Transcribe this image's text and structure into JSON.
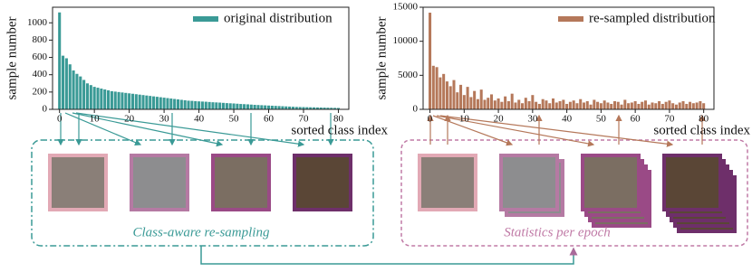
{
  "chart_data": [
    {
      "type": "bar",
      "series": [
        {
          "name": "original distribution",
          "color": "#3a9a96",
          "values": [
            1120,
            620,
            590,
            520,
            450,
            410,
            380,
            340,
            300,
            280,
            260,
            250,
            240,
            230,
            220,
            210,
            205,
            200,
            195,
            190,
            185,
            180,
            175,
            170,
            165,
            160,
            155,
            150,
            145,
            140,
            135,
            130,
            125,
            120,
            115,
            110,
            105,
            100,
            98,
            95,
            92,
            90,
            88,
            85,
            82,
            80,
            78,
            75,
            72,
            70,
            68,
            65,
            62,
            60,
            58,
            55,
            52,
            50,
            48,
            46,
            44,
            42,
            40,
            38,
            36,
            34,
            32,
            30,
            28,
            27,
            26,
            25,
            24,
            23,
            22,
            21,
            20,
            19,
            18,
            17,
            16
          ]
        }
      ],
      "x": [
        0,
        1,
        2,
        3,
        4,
        5,
        6,
        7,
        8,
        9,
        10,
        11,
        12,
        13,
        14,
        15,
        16,
        17,
        18,
        19,
        20,
        21,
        22,
        23,
        24,
        25,
        26,
        27,
        28,
        29,
        30,
        31,
        32,
        33,
        34,
        35,
        36,
        37,
        38,
        39,
        40,
        41,
        42,
        43,
        44,
        45,
        46,
        47,
        48,
        49,
        50,
        51,
        52,
        53,
        54,
        55,
        56,
        57,
        58,
        59,
        60,
        61,
        62,
        63,
        64,
        65,
        66,
        67,
        68,
        69,
        70,
        71,
        72,
        73,
        74,
        75,
        76,
        77,
        78,
        79,
        80
      ],
      "xlim": [
        -2,
        83
      ],
      "xticks": [
        0,
        10,
        20,
        30,
        40,
        50,
        60,
        70,
        80
      ],
      "ylim": [
        0,
        1180
      ],
      "yticks": [
        0,
        200,
        400,
        600,
        800,
        1000
      ],
      "x_label": "sorted class index",
      "y_label": "sample number",
      "legend": "upper right"
    },
    {
      "type": "bar",
      "series": [
        {
          "name": "re-sampled distribution",
          "color": "#b5785a",
          "values": [
            14200,
            6400,
            6200,
            4700,
            5200,
            4100,
            3400,
            4300,
            2500,
            3600,
            2100,
            3300,
            1800,
            2700,
            1500,
            2900,
            1400,
            1700,
            2200,
            1300,
            1600,
            1100,
            1900,
            1200,
            2300,
            1000,
            1400,
            900,
            1700,
            1200,
            2100,
            1100,
            800,
            1500,
            1300,
            900,
            1600,
            1000,
            1200,
            1400,
            800,
            1100,
            1300,
            900,
            1500,
            1000,
            1200,
            700,
            1400,
            1100,
            900,
            1300,
            1000,
            800,
            1200,
            1100,
            700,
            1400,
            900,
            1000,
            1200,
            800,
            1100,
            1300,
            700,
            1000,
            900,
            1200,
            800,
            1100,
            1300,
            900,
            700,
            1000,
            1200,
            800,
            1100,
            900,
            1000,
            1200,
            900
          ]
        }
      ],
      "x": [
        0,
        1,
        2,
        3,
        4,
        5,
        6,
        7,
        8,
        9,
        10,
        11,
        12,
        13,
        14,
        15,
        16,
        17,
        18,
        19,
        20,
        21,
        22,
        23,
        24,
        25,
        26,
        27,
        28,
        29,
        30,
        31,
        32,
        33,
        34,
        35,
        36,
        37,
        38,
        39,
        40,
        41,
        42,
        43,
        44,
        45,
        46,
        47,
        48,
        49,
        50,
        51,
        52,
        53,
        54,
        55,
        56,
        57,
        58,
        59,
        60,
        61,
        62,
        63,
        64,
        65,
        66,
        67,
        68,
        69,
        70,
        71,
        72,
        73,
        74,
        75,
        76,
        77,
        78,
        79,
        80
      ],
      "xlim": [
        -2,
        83
      ],
      "xticks": [
        0,
        10,
        20,
        30,
        40,
        50,
        60,
        70,
        80
      ],
      "ylim": [
        0,
        15000
      ],
      "yticks": [
        0,
        5000,
        10000,
        15000
      ],
      "x_label": "sorted class index",
      "y_label": "sample number",
      "legend": "upper right"
    }
  ],
  "diagram": {
    "left_caption": "Class-aware re-sampling",
    "right_caption": "Statistics per epoch"
  }
}
